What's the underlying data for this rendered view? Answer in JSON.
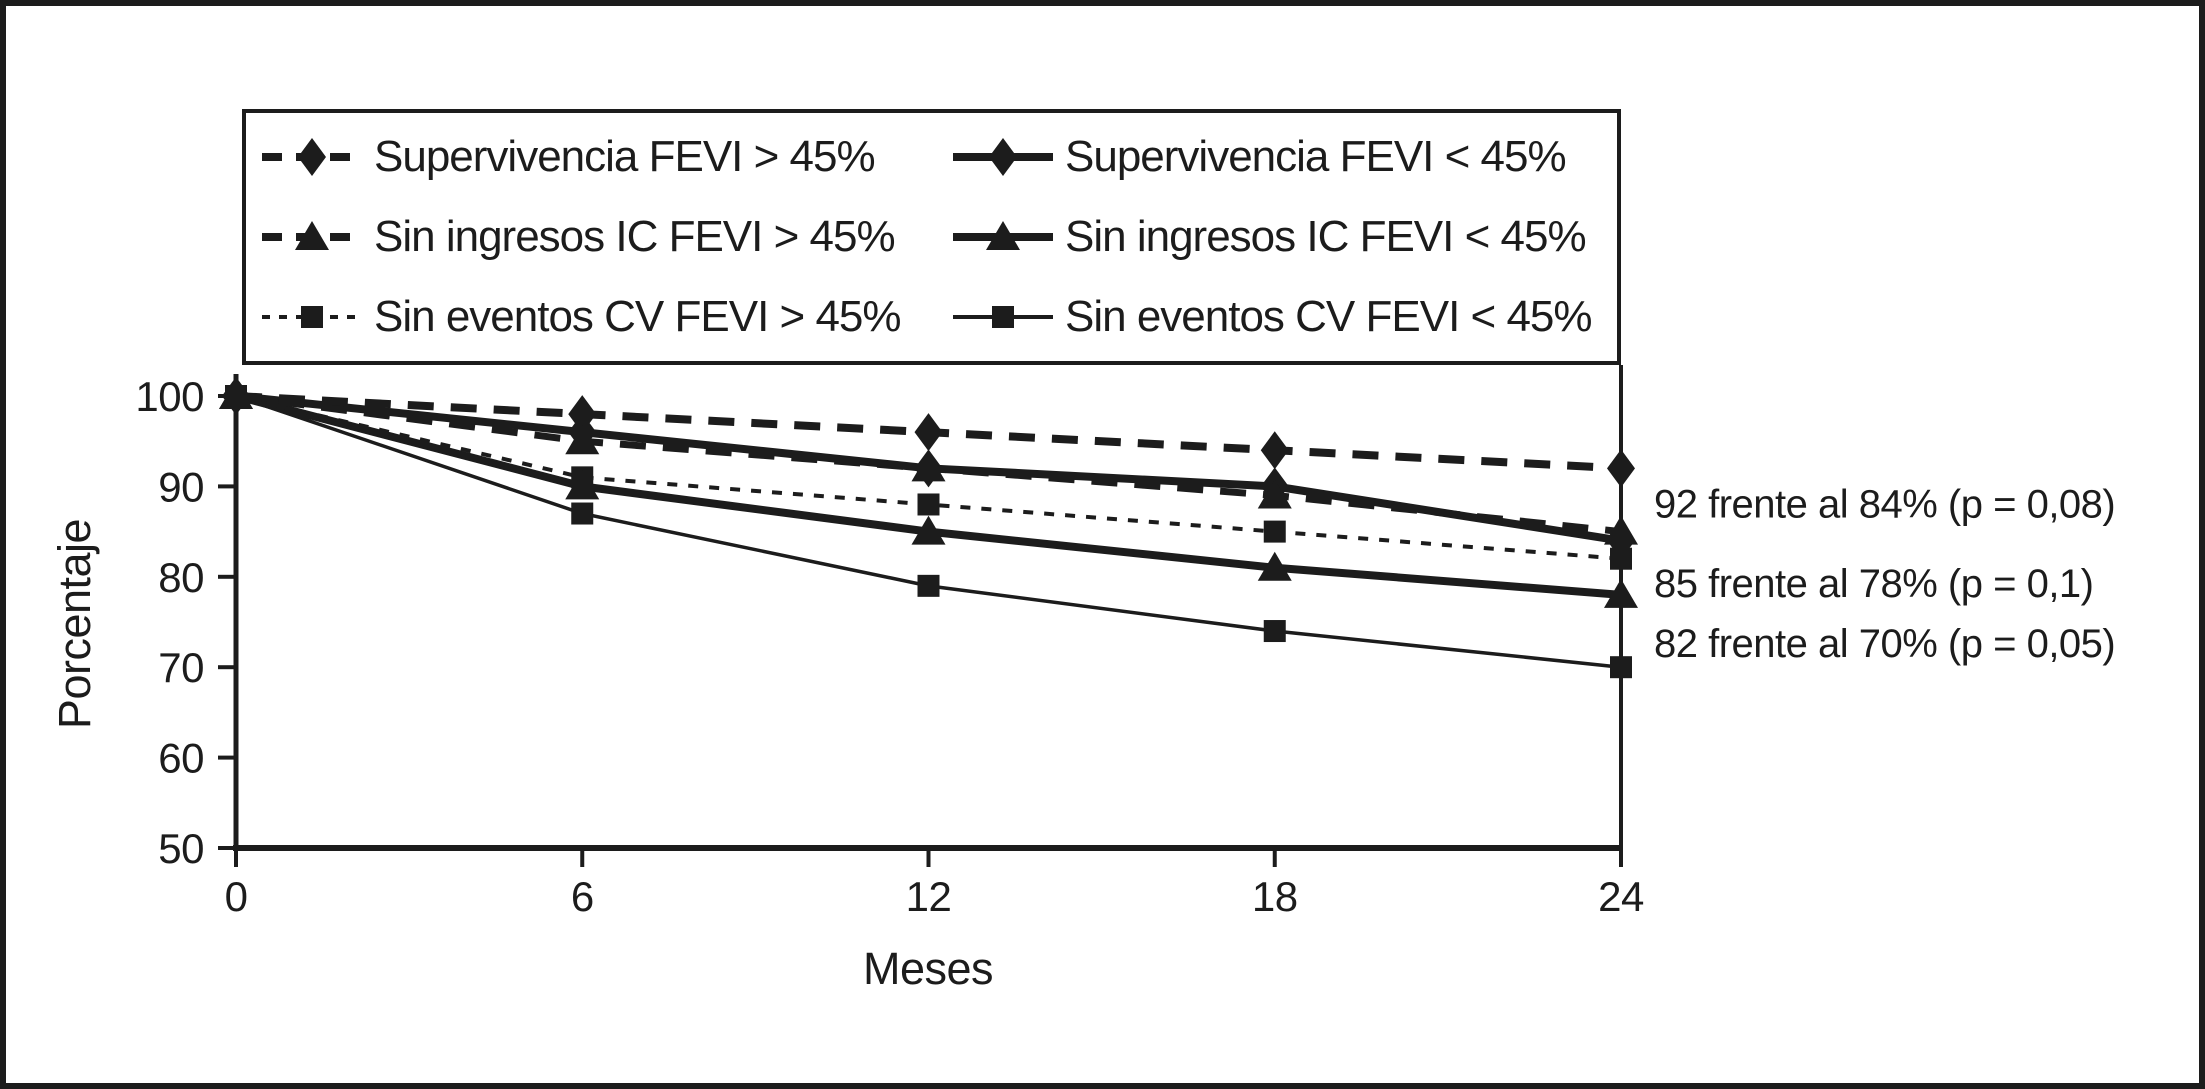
{
  "colors": {
    "ink": "#1c1c1c",
    "background": "#ffffff"
  },
  "legend": {
    "items": [
      {
        "label": "Supervivencia FEVI > 45%",
        "marker": "diamond",
        "line": "dashed",
        "thick": true
      },
      {
        "label": "Sin ingresos IC FEVI > 45%",
        "marker": "triangle",
        "line": "dashed",
        "thick": true
      },
      {
        "label": "Sin eventos CV FEVI > 45%",
        "marker": "square",
        "line": "dotted",
        "thick": false
      },
      {
        "label": "Supervivencia FEVI < 45%",
        "marker": "diamond",
        "line": "solid",
        "thick": true
      },
      {
        "label": "Sin ingresos IC FEVI < 45%",
        "marker": "triangle",
        "line": "solid",
        "thick": true
      },
      {
        "label": "Sin eventos CV FEVI < 45%",
        "marker": "square",
        "line": "solid",
        "thick": false
      }
    ]
  },
  "chart_data": {
    "type": "line",
    "title": "",
    "xlabel": "Meses",
    "ylabel": "Porcentaje",
    "x": [
      0,
      6,
      12,
      18,
      24
    ],
    "xlim": [
      0,
      24
    ],
    "ylim": [
      50,
      100
    ],
    "yticks": [
      50,
      60,
      70,
      80,
      90,
      100
    ],
    "grid": false,
    "legend_position": "top",
    "series": [
      {
        "name": "Supervivencia FEVI > 45%",
        "marker": "diamond",
        "line": "dashed",
        "width": 8,
        "values": [
          100,
          98,
          96,
          94,
          92
        ]
      },
      {
        "name": "Supervivencia FEVI < 45%",
        "marker": "diamond",
        "line": "solid",
        "width": 8,
        "values": [
          100,
          96,
          92,
          90,
          84
        ]
      },
      {
        "name": "Sin ingresos IC FEVI > 45%",
        "marker": "triangle",
        "line": "dashed",
        "width": 7,
        "values": [
          100,
          95,
          92,
          89,
          85
        ]
      },
      {
        "name": "Sin ingresos IC FEVI < 45%",
        "marker": "triangle",
        "line": "solid",
        "width": 8,
        "values": [
          100,
          90,
          85,
          81,
          78
        ]
      },
      {
        "name": "Sin eventos CV FEVI > 45%",
        "marker": "square",
        "line": "dotted",
        "width": 4,
        "values": [
          100,
          91,
          88,
          85,
          82
        ]
      },
      {
        "name": "Sin eventos CV FEVI < 45%",
        "marker": "square",
        "line": "solid",
        "width": 3.5,
        "values": [
          100,
          87,
          79,
          74,
          70
        ]
      }
    ],
    "annotations": [
      {
        "text": "92 frente al 84% (p = 0,08)",
        "at": 88.1
      },
      {
        "text": "85 frente al 78% (p = 0,1)",
        "at": 79.3
      },
      {
        "text": "82 frente al 70% (p = 0,05)",
        "at": 72.7
      }
    ]
  }
}
